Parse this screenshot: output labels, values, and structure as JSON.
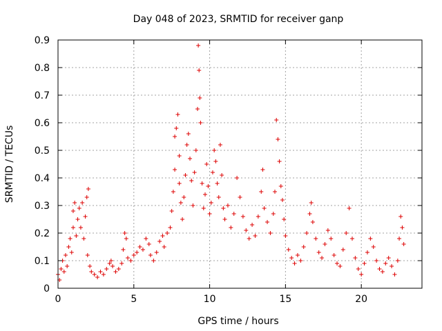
{
  "chart_data": {
    "type": "scatter",
    "title": "Day 048 of 2023, SRMTID for receiver ganp",
    "xlabel": "GPS time / hours",
    "ylabel": "SRMTID / TECUs",
    "xlim": [
      0,
      24
    ],
    "ylim": [
      0,
      0.9
    ],
    "x_ticks": [
      0,
      5,
      10,
      15,
      20
    ],
    "x_tick_labels": [
      "0",
      "5",
      "10",
      "15",
      "20"
    ],
    "y_ticks": [
      0,
      0.1,
      0.2,
      0.3,
      0.4,
      0.5,
      0.6,
      0.7,
      0.8,
      0.9
    ],
    "y_tick_labels": [
      "0",
      "0.1",
      "0.2",
      "0.3",
      "0.4",
      "0.5",
      "0.6",
      "0.7",
      "0.8",
      "0.9"
    ],
    "grid": true,
    "marker": "+",
    "color": "#dd0000",
    "series": [
      {
        "name": "SRMTID",
        "points": [
          [
            0.0,
            0.05
          ],
          [
            0.1,
            0.03
          ],
          [
            0.2,
            0.07
          ],
          [
            0.3,
            0.1
          ],
          [
            0.4,
            0.06
          ],
          [
            0.5,
            0.12
          ],
          [
            0.6,
            0.08
          ],
          [
            0.7,
            0.15
          ],
          [
            0.8,
            0.18
          ],
          [
            0.9,
            0.13
          ],
          [
            1.0,
            0.22
          ],
          [
            1.0,
            0.28
          ],
          [
            1.1,
            0.31
          ],
          [
            1.2,
            0.19
          ],
          [
            1.3,
            0.25
          ],
          [
            1.4,
            0.29
          ],
          [
            1.5,
            0.22
          ],
          [
            1.6,
            0.31
          ],
          [
            1.7,
            0.18
          ],
          [
            1.8,
            0.26
          ],
          [
            1.9,
            0.33
          ],
          [
            2.0,
            0.36
          ],
          [
            1.95,
            0.12
          ],
          [
            2.1,
            0.08
          ],
          [
            2.2,
            0.06
          ],
          [
            2.4,
            0.05
          ],
          [
            2.6,
            0.04
          ],
          [
            2.8,
            0.06
          ],
          [
            3.0,
            0.05
          ],
          [
            3.2,
            0.07
          ],
          [
            3.4,
            0.09
          ],
          [
            3.5,
            0.1
          ],
          [
            3.6,
            0.08
          ],
          [
            3.8,
            0.06
          ],
          [
            4.0,
            0.07
          ],
          [
            4.2,
            0.09
          ],
          [
            4.3,
            0.14
          ],
          [
            4.4,
            0.2
          ],
          [
            4.5,
            0.18
          ],
          [
            4.6,
            0.11
          ],
          [
            4.8,
            0.1
          ],
          [
            5.0,
            0.12
          ],
          [
            5.2,
            0.13
          ],
          [
            5.4,
            0.15
          ],
          [
            5.6,
            0.14
          ],
          [
            5.8,
            0.18
          ],
          [
            6.0,
            0.16
          ],
          [
            6.1,
            0.12
          ],
          [
            6.3,
            0.1
          ],
          [
            6.5,
            0.13
          ],
          [
            6.7,
            0.17
          ],
          [
            6.9,
            0.19
          ],
          [
            7.0,
            0.15
          ],
          [
            7.2,
            0.2
          ],
          [
            7.4,
            0.22
          ],
          [
            7.5,
            0.28
          ],
          [
            7.6,
            0.35
          ],
          [
            7.7,
            0.43
          ],
          [
            7.7,
            0.55
          ],
          [
            7.8,
            0.58
          ],
          [
            7.9,
            0.63
          ],
          [
            8.0,
            0.48
          ],
          [
            8.0,
            0.38
          ],
          [
            8.1,
            0.31
          ],
          [
            8.2,
            0.25
          ],
          [
            8.3,
            0.33
          ],
          [
            8.4,
            0.41
          ],
          [
            8.5,
            0.52
          ],
          [
            8.6,
            0.56
          ],
          [
            8.7,
            0.47
          ],
          [
            8.8,
            0.39
          ],
          [
            8.9,
            0.3
          ],
          [
            9.0,
            0.42
          ],
          [
            9.1,
            0.5
          ],
          [
            9.2,
            0.65
          ],
          [
            9.25,
            0.88
          ],
          [
            9.3,
            0.79
          ],
          [
            9.35,
            0.69
          ],
          [
            9.4,
            0.6
          ],
          [
            9.5,
            0.38
          ],
          [
            9.6,
            0.29
          ],
          [
            9.7,
            0.34
          ],
          [
            9.8,
            0.45
          ],
          [
            9.9,
            0.37
          ],
          [
            10.0,
            0.27
          ],
          [
            10.1,
            0.31
          ],
          [
            10.2,
            0.42
          ],
          [
            10.3,
            0.5
          ],
          [
            10.4,
            0.46
          ],
          [
            10.5,
            0.38
          ],
          [
            10.6,
            0.33
          ],
          [
            10.7,
            0.52
          ],
          [
            10.8,
            0.41
          ],
          [
            10.9,
            0.29
          ],
          [
            11.0,
            0.25
          ],
          [
            11.2,
            0.3
          ],
          [
            11.4,
            0.22
          ],
          [
            11.6,
            0.27
          ],
          [
            11.8,
            0.4
          ],
          [
            12.0,
            0.33
          ],
          [
            12.2,
            0.26
          ],
          [
            12.4,
            0.21
          ],
          [
            12.6,
            0.18
          ],
          [
            12.8,
            0.23
          ],
          [
            13.0,
            0.19
          ],
          [
            13.2,
            0.26
          ],
          [
            13.4,
            0.35
          ],
          [
            13.5,
            0.43
          ],
          [
            13.6,
            0.29
          ],
          [
            13.8,
            0.24
          ],
          [
            14.0,
            0.2
          ],
          [
            14.2,
            0.27
          ],
          [
            14.3,
            0.35
          ],
          [
            14.4,
            0.61
          ],
          [
            14.5,
            0.54
          ],
          [
            14.6,
            0.46
          ],
          [
            14.7,
            0.37
          ],
          [
            14.8,
            0.32
          ],
          [
            14.9,
            0.25
          ],
          [
            15.0,
            0.19
          ],
          [
            15.2,
            0.14
          ],
          [
            15.4,
            0.11
          ],
          [
            15.6,
            0.09
          ],
          [
            15.8,
            0.12
          ],
          [
            16.0,
            0.1
          ],
          [
            16.2,
            0.15
          ],
          [
            16.4,
            0.2
          ],
          [
            16.6,
            0.27
          ],
          [
            16.7,
            0.31
          ],
          [
            16.8,
            0.24
          ],
          [
            17.0,
            0.18
          ],
          [
            17.2,
            0.13
          ],
          [
            17.4,
            0.11
          ],
          [
            17.6,
            0.16
          ],
          [
            17.8,
            0.21
          ],
          [
            18.0,
            0.18
          ],
          [
            18.2,
            0.12
          ],
          [
            18.4,
            0.09
          ],
          [
            18.6,
            0.08
          ],
          [
            18.8,
            0.14
          ],
          [
            19.0,
            0.2
          ],
          [
            19.2,
            0.29
          ],
          [
            19.4,
            0.18
          ],
          [
            19.6,
            0.11
          ],
          [
            19.8,
            0.07
          ],
          [
            20.0,
            0.05
          ],
          [
            20.2,
            0.09
          ],
          [
            20.4,
            0.13
          ],
          [
            20.6,
            0.18
          ],
          [
            20.8,
            0.15
          ],
          [
            21.0,
            0.1
          ],
          [
            21.2,
            0.07
          ],
          [
            21.4,
            0.06
          ],
          [
            21.6,
            0.09
          ],
          [
            21.8,
            0.11
          ],
          [
            22.0,
            0.08
          ],
          [
            22.2,
            0.05
          ],
          [
            22.4,
            0.1
          ],
          [
            22.5,
            0.18
          ],
          [
            22.6,
            0.26
          ],
          [
            22.7,
            0.22
          ],
          [
            22.8,
            0.16
          ]
        ]
      }
    ]
  }
}
